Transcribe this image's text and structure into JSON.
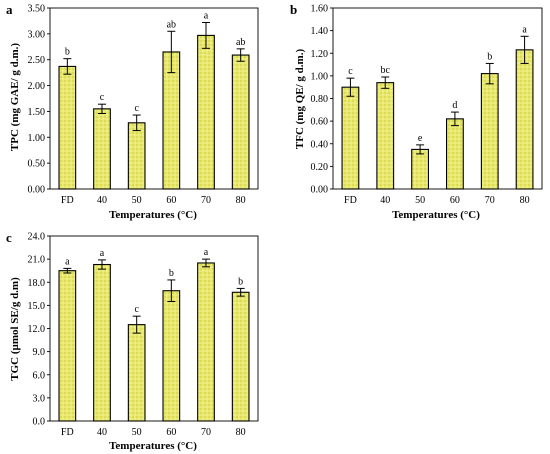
{
  "palette": {
    "bar_fill": "#e8e86a",
    "bar_stroke": "#000000",
    "error_bar": "#000000"
  },
  "chart_data": [
    {
      "panel_letter": "a",
      "type": "bar",
      "categories": [
        "FD",
        "40",
        "50",
        "60",
        "70",
        "80"
      ],
      "values": [
        2.37,
        1.55,
        1.28,
        2.65,
        2.97,
        2.59
      ],
      "errors": [
        0.15,
        0.09,
        0.15,
        0.4,
        0.25,
        0.12
      ],
      "letters": [
        "b",
        "c",
        "c",
        "ab",
        "a",
        "ab"
      ],
      "ylabel": "TPC (mg GAE/ g d.m.)",
      "xlabel": "Temperatures (°C)",
      "ylim": [
        0,
        3.5
      ],
      "yticks": [
        "0.00",
        "0.50",
        "1.00",
        "1.50",
        "2.00",
        "2.50",
        "3.00",
        "3.50"
      ],
      "grid": false
    },
    {
      "panel_letter": "b",
      "type": "bar",
      "categories": [
        "FD",
        "40",
        "50",
        "60",
        "70",
        "80"
      ],
      "values": [
        0.9,
        0.94,
        0.35,
        0.62,
        1.02,
        1.23
      ],
      "errors": [
        0.08,
        0.05,
        0.04,
        0.06,
        0.09,
        0.12
      ],
      "letters": [
        "c",
        "bc",
        "e",
        "d",
        "b",
        "a"
      ],
      "ylabel": "TFC (mg QE/ g d.m.)",
      "xlabel": "Temperatures (°C)",
      "ylim": [
        0,
        1.6
      ],
      "yticks": [
        "0.00",
        "0.20",
        "0.40",
        "0.60",
        "0.80",
        "1.00",
        "1.20",
        "1.40",
        "1.60"
      ],
      "grid": false
    },
    {
      "panel_letter": "c",
      "type": "bar",
      "categories": [
        "FD",
        "40",
        "50",
        "60",
        "70",
        "80"
      ],
      "values": [
        19.5,
        20.3,
        12.5,
        16.9,
        20.5,
        16.7
      ],
      "errors": [
        0.3,
        0.6,
        1.1,
        1.4,
        0.5,
        0.5
      ],
      "letters": [
        "a",
        "a",
        "c",
        "b",
        "a",
        "b"
      ],
      "ylabel": "TGC (µmol SE/g d.m)",
      "xlabel": "Temperatures (°C)",
      "ylim": [
        0,
        24
      ],
      "yticks": [
        "0.0",
        "3.0",
        "6.0",
        "9.0",
        "12.0",
        "15.0",
        "18.0",
        "21.0",
        "24.0"
      ],
      "grid": false
    }
  ]
}
